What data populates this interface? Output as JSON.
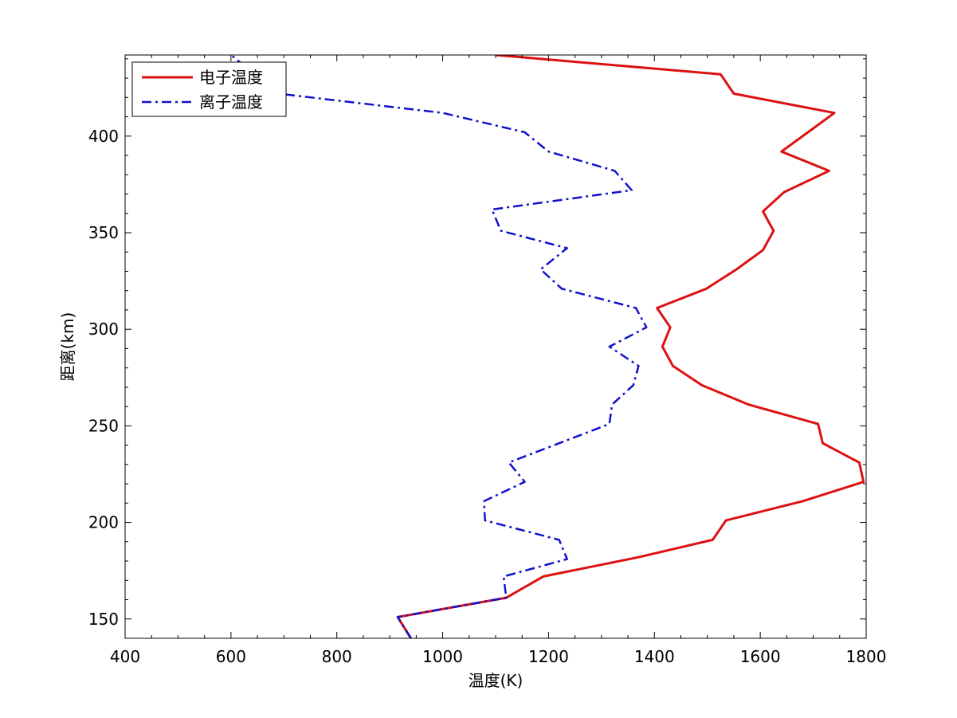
{
  "chart_data": {
    "type": "line",
    "title": "",
    "xlabel": "温度(K)",
    "ylabel": "距离(km)",
    "xlim": [
      400,
      1800
    ],
    "ylim": [
      140,
      442
    ],
    "xticks": [
      400,
      600,
      800,
      1000,
      1200,
      1400,
      1600,
      1800
    ],
    "yticks": [
      150,
      200,
      250,
      300,
      350,
      400
    ],
    "grid": false,
    "legend_position": "top-left",
    "series": [
      {
        "name": "电子温度",
        "color": "#dd1111",
        "style": "solid",
        "points": [
          [
            940,
            140
          ],
          [
            915,
            151
          ],
          [
            1120,
            161
          ],
          [
            1190,
            172
          ],
          [
            1370,
            182
          ],
          [
            1510,
            191
          ],
          [
            1535,
            201
          ],
          [
            1680,
            211
          ],
          [
            1795,
            221
          ],
          [
            1787,
            231
          ],
          [
            1718,
            241
          ],
          [
            1709,
            251
          ],
          [
            1578,
            261
          ],
          [
            1490,
            271
          ],
          [
            1435,
            281
          ],
          [
            1415,
            291
          ],
          [
            1430,
            301
          ],
          [
            1405,
            311
          ],
          [
            1498,
            321
          ],
          [
            1555,
            331
          ],
          [
            1605,
            341
          ],
          [
            1625,
            351
          ],
          [
            1605,
            361
          ],
          [
            1645,
            371
          ],
          [
            1730,
            382
          ],
          [
            1640,
            392
          ],
          [
            1690,
            402
          ],
          [
            1740,
            412
          ],
          [
            1550,
            422
          ],
          [
            1525,
            432
          ],
          [
            1100,
            442
          ]
        ]
      },
      {
        "name": "离子温度",
        "color": "#1111cc",
        "style": "dashdot",
        "points": [
          [
            940,
            140
          ],
          [
            915,
            151
          ],
          [
            1120,
            161
          ],
          [
            1115,
            172
          ],
          [
            1235,
            181
          ],
          [
            1220,
            191
          ],
          [
            1080,
            201
          ],
          [
            1078,
            211
          ],
          [
            1155,
            221
          ],
          [
            1125,
            231
          ],
          [
            1220,
            241
          ],
          [
            1315,
            251
          ],
          [
            1320,
            261
          ],
          [
            1360,
            271
          ],
          [
            1370,
            281
          ],
          [
            1315,
            291
          ],
          [
            1385,
            301
          ],
          [
            1365,
            311
          ],
          [
            1225,
            321
          ],
          [
            1185,
            331
          ],
          [
            1235,
            342
          ],
          [
            1110,
            351
          ],
          [
            1093,
            362
          ],
          [
            1357,
            372
          ],
          [
            1325,
            382
          ],
          [
            1200,
            392
          ],
          [
            1155,
            402
          ],
          [
            1000,
            412
          ],
          [
            690,
            422
          ],
          [
            600,
            442
          ]
        ]
      }
    ]
  }
}
